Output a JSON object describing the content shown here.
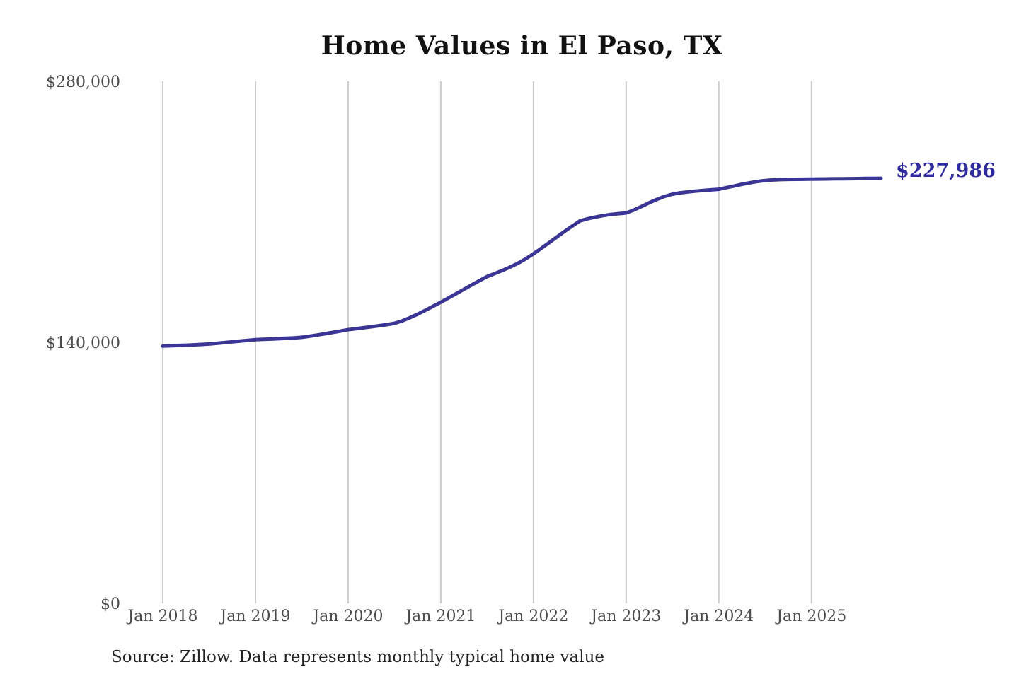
{
  "title": "Home Values in El Paso, TX",
  "end_label": "$227,986",
  "source_note": "Source: Zillow. Data represents monthly typical home value",
  "colors": {
    "line": "#3b3596",
    "end_label": "#2f2b9e",
    "grid": "#cccccc",
    "axis_text": "#4b4b4b",
    "title_text": "#111111",
    "source_text": "#222222",
    "background": "#ffffff"
  },
  "chart_data": {
    "type": "line",
    "title": "Home Values in El Paso, TX",
    "xlabel": "",
    "ylabel": "",
    "ylim": [
      0,
      280000
    ],
    "grid": "vertical-only",
    "legend": "none",
    "interval": "monthly",
    "start_month": "Jan 2018",
    "end_month": "Oct 2025",
    "x_tick_labels": [
      "Jan 2018",
      "Jan 2019",
      "Jan 2020",
      "Jan 2021",
      "Jan 2022",
      "Jan 2023",
      "Jan 2024",
      "Jan 2025"
    ],
    "x_tick_month_interval": 12,
    "y_ticks": [
      {
        "label": "$0",
        "value": 0
      },
      {
        "label": "$140,000",
        "value": 140000
      },
      {
        "label": "$280,000",
        "value": 280000
      }
    ],
    "end_value": 227986,
    "series": [
      {
        "name": "Monthly typical home value",
        "values": [
          138000,
          138150,
          138300,
          138450,
          138650,
          138850,
          139100,
          139450,
          139850,
          140250,
          140650,
          141050,
          141400,
          141600,
          141750,
          141950,
          142150,
          142400,
          142700,
          143250,
          143900,
          144600,
          145300,
          146050,
          146800,
          147300,
          147800,
          148350,
          148900,
          149500,
          150200,
          151500,
          153200,
          155100,
          157200,
          159350,
          161500,
          163800,
          166100,
          168400,
          170800,
          173100,
          175300,
          176900,
          178600,
          180400,
          182400,
          184800,
          187500,
          190400,
          193400,
          196400,
          199400,
          202300,
          205100,
          206300,
          207200,
          208000,
          208600,
          209000,
          209400,
          211000,
          212900,
          214900,
          216700,
          218300,
          219500,
          220200,
          220700,
          221100,
          221500,
          221800,
          222100,
          223000,
          223900,
          224800,
          225600,
          226300,
          226800,
          227100,
          227300,
          227400,
          227450,
          227500,
          227550,
          227600,
          227650,
          227700,
          227750,
          227800,
          227850,
          227900,
          227950,
          227986
        ]
      }
    ]
  }
}
